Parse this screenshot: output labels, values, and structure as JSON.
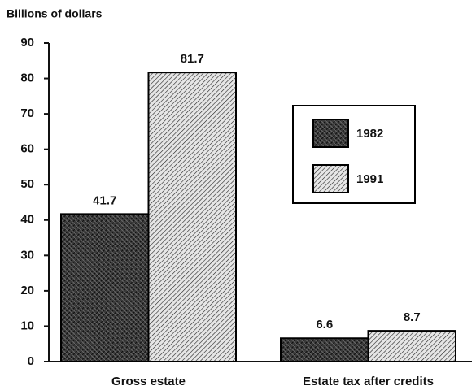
{
  "chart_data": {
    "type": "bar",
    "y_label": "Billions of dollars",
    "categories": [
      "Gross estate",
      "Estate tax after credits"
    ],
    "series": [
      {
        "name": "1982",
        "color": "#3a3a3a",
        "values": [
          41.7,
          6.6
        ]
      },
      {
        "name": "1991",
        "color": "#e6e6e6",
        "values": [
          81.7,
          8.7
        ]
      }
    ],
    "ylim": [
      0,
      90
    ],
    "yticks": [
      0,
      10,
      20,
      30,
      40,
      50,
      60,
      70,
      80,
      90
    ],
    "grid": false,
    "legend": "right"
  }
}
